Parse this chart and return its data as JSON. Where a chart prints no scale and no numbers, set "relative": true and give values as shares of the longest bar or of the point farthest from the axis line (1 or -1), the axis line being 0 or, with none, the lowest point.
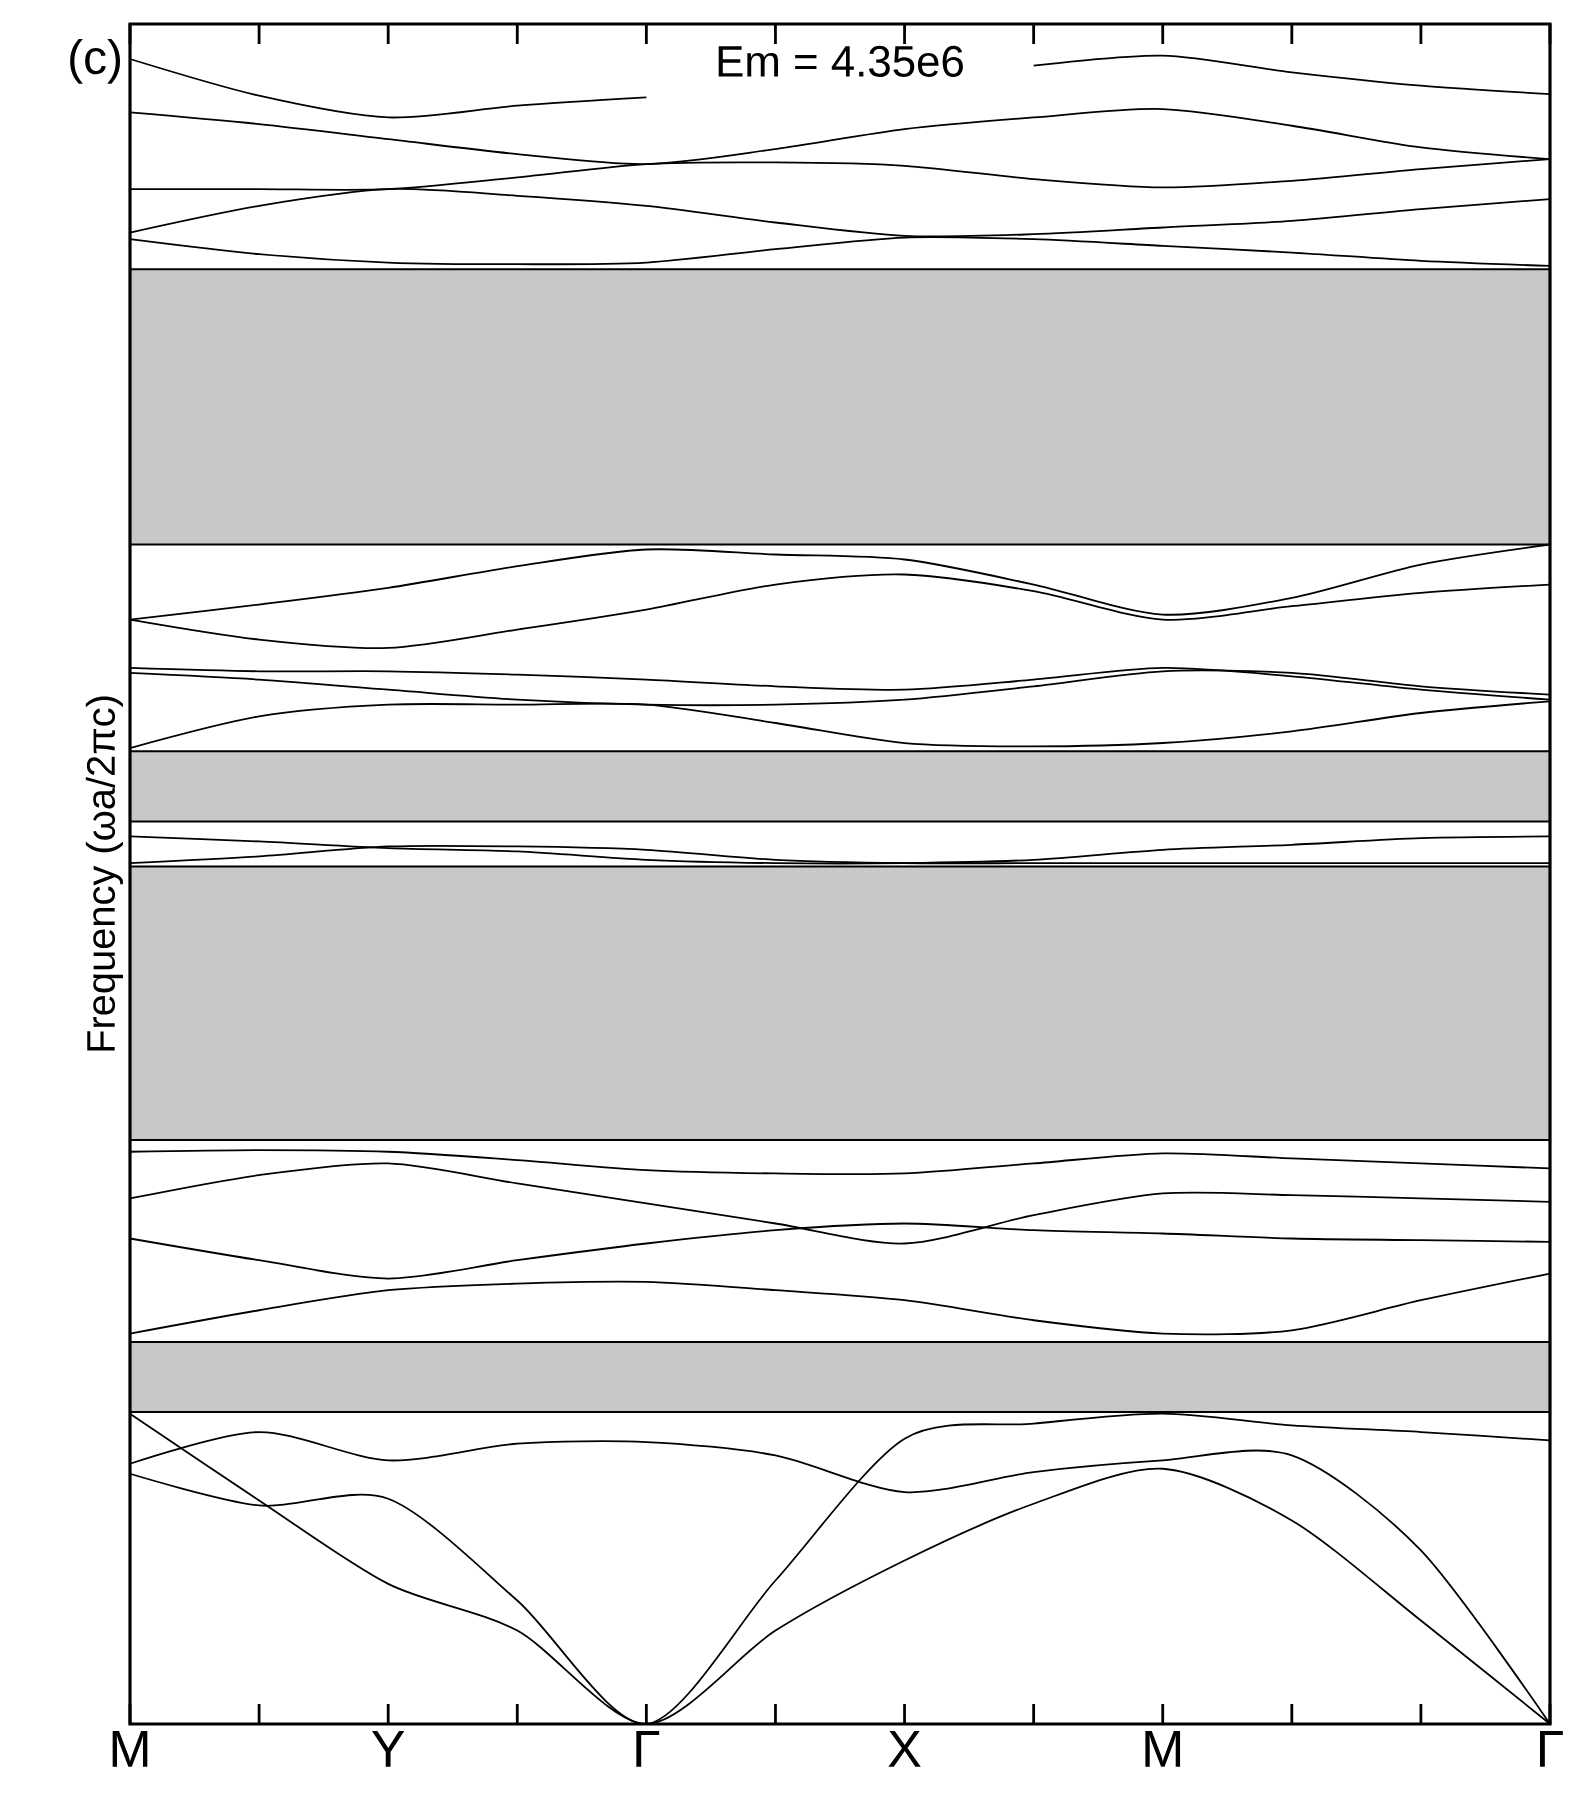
{
  "chart_data": {
    "type": "line",
    "relative": true,
    "tick_labels": "x",
    "ylabel": "Frequency (ωa/2πc)",
    "annotations": [
      "(c)",
      "Em = 4.35e6"
    ],
    "categories": [
      "M",
      null,
      "Y",
      null,
      "Γ",
      null,
      "X",
      null,
      "M",
      null,
      null,
      "Γ"
    ],
    "bands": [
      {
        "axis": "y",
        "from": 0.707,
        "to": 0.872,
        "color": "#c8c8c8"
      },
      {
        "axis": "y",
        "from": 0.541,
        "to": 0.583,
        "color": "#c8c8c8"
      },
      {
        "axis": "y",
        "from": 0.35,
        "to": 0.514,
        "color": "#c8c8c8"
      },
      {
        "axis": "y",
        "from": 0.187,
        "to": 0.229,
        "color": "#c8c8c8"
      }
    ],
    "series": [
      {
        "color": "#000000",
        "values": [
          0.186,
          0.134,
          0.084,
          0.056,
          0,
          0.056,
          0.098,
          0.132,
          0.153,
          0.122,
          0.062,
          0
        ]
      },
      {
        "color": "#000000",
        "values": [
          0.15,
          0.131,
          0.135,
          0.074,
          0,
          0.086,
          0.171,
          0.18,
          0.186,
          0.179,
          0.175,
          0.17
        ]
      },
      {
        "color": "#000000",
        "values": [
          0.156,
          0.175,
          0.158,
          0.168,
          0.169,
          0.161,
          0.139,
          0.151,
          0.158,
          0.161,
          0.104,
          0
        ]
      },
      {
        "color": "#000000",
        "values": [
          0.234,
          0.248,
          0.26,
          0.264,
          0.265,
          0.26,
          0.254,
          0.242,
          0.234,
          0.236,
          0.254,
          0.27
        ]
      },
      {
        "color": "#000000",
        "values": [
          0.291,
          0.278,
          0.267,
          0.278,
          0.288,
          0.296,
          0.3,
          0.296,
          0.294,
          0.291,
          0.29,
          0.289
        ]
      },
      {
        "color": "#000000",
        "values": [
          0.315,
          0.329,
          0.336,
          0.324,
          0.312,
          0.3,
          0.288,
          0.305,
          0.318,
          0.317,
          0.315,
          0.313
        ]
      },
      {
        "color": "#000000",
        "values": [
          0.343,
          0.344,
          0.343,
          0.338,
          0.332,
          0.33,
          0.33,
          0.336,
          0.342,
          0.339,
          0.336,
          0.333
        ]
      },
      {
        "color": "#000000",
        "values": [
          0.516,
          0.52,
          0.526,
          0.526,
          0.524,
          0.518,
          0.516,
          0.516,
          0.516,
          0.516,
          0.516,
          0.516
        ]
      },
      {
        "color": "#000000",
        "values": [
          0.532,
          0.529,
          0.525,
          0.523,
          0.518,
          0.516,
          0.516,
          0.518,
          0.524,
          0.527,
          0.531,
          0.532
        ]
      },
      {
        "color": "#000000",
        "values": [
          0.585,
          0.604,
          0.611,
          0.611,
          0.611,
          0.6,
          0.588,
          0.586,
          0.588,
          0.595,
          0.606,
          0.613
        ]
      },
      {
        "color": "#000000",
        "values": [
          0.633,
          0.631,
          0.631,
          0.629,
          0.626,
          0.622,
          0.62,
          0.626,
          0.633,
          0.628,
          0.62,
          0.614
        ]
      },
      {
        "color": "#000000",
        "values": [
          0.63,
          0.626,
          0.62,
          0.614,
          0.611,
          0.611,
          0.614,
          0.622,
          0.631,
          0.63,
          0.622,
          0.617
        ]
      },
      {
        "color": "#000000",
        "values": [
          0.662,
          0.65,
          0.645,
          0.656,
          0.668,
          0.683,
          0.689,
          0.679,
          0.662,
          0.67,
          0.678,
          0.683
        ]
      },
      {
        "color": "#000000",
        "values": [
          0.662,
          0.671,
          0.681,
          0.694,
          0.704,
          0.701,
          0.698,
          0.683,
          0.665,
          0.675,
          0.695,
          0.707
        ]
      },
      {
        "color": "#000000",
        "values": [
          0.89,
          0.881,
          0.876,
          0.875,
          0.876,
          0.884,
          0.891,
          0.89,
          0.886,
          0.882,
          0.877,
          0.874
        ]
      },
      {
        "color": "#000000",
        "values": [
          0.894,
          0.91,
          0.92,
          0.916,
          0.91,
          0.9,
          0.892,
          0.893,
          0.897,
          0.901,
          0.908,
          0.914
        ]
      },
      {
        "color": "#000000",
        "values": [
          0.92,
          0.92,
          0.92,
          0.927,
          0.935,
          0.936,
          0.934,
          0.926,
          0.921,
          0.925,
          0.932,
          0.938
        ]
      },
      {
        "color": "#000000",
        "values": [
          0.966,
          0.959,
          0.95,
          0.941,
          0.935,
          0.944,
          0.956,
          0.963,
          0.968,
          0.958,
          0.945,
          0.938
        ]
      },
      {
        "color": "#000000",
        "values": [
          0.998,
          0.976,
          0.963,
          0.97,
          0.975,
          null,
          null,
          0.994,
          1,
          0.99,
          0.982,
          0.977
        ]
      }
    ]
  }
}
